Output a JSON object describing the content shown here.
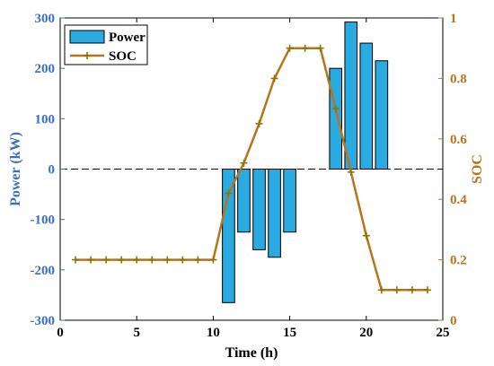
{
  "chart_data": {
    "type": "bar+line",
    "title": "",
    "xlabel": "Time (h)",
    "ylabel_left": "Power (kW)",
    "ylabel_right": "SOC",
    "xlim": [
      0,
      25
    ],
    "ylim_left": [
      -300,
      300
    ],
    "ylim_right": [
      0,
      1
    ],
    "x_ticks": [
      "0",
      "5",
      "10",
      "15",
      "20",
      "25"
    ],
    "y_left_ticks": [
      "-300",
      "-200",
      "-100",
      "0",
      "100",
      "200",
      "300"
    ],
    "y_right_ticks": [
      "0",
      "0.2",
      "0.4",
      "0.6",
      "0.8",
      "1"
    ],
    "grid": false,
    "legend_position": "top-left",
    "colors": {
      "power": "#29abe2",
      "soc": "#b8741a",
      "soc_marker": "#8b7500",
      "left_axis": "#3a6fc4",
      "right_axis": "#b8741a"
    },
    "series": [
      {
        "name": "Power",
        "axis": "left",
        "type": "bar",
        "x": [
          11,
          12,
          13,
          14,
          15,
          18,
          19,
          20,
          21
        ],
        "values": [
          -265,
          -125,
          -160,
          -175,
          -125,
          200,
          292,
          250,
          215
        ]
      },
      {
        "name": "SOC",
        "axis": "right",
        "type": "line",
        "x": [
          1,
          2,
          3,
          4,
          5,
          6,
          7,
          8,
          9,
          10,
          11,
          12,
          13,
          14,
          15,
          16,
          17,
          18,
          19,
          20,
          21,
          22,
          23,
          24
        ],
        "values": [
          0.2,
          0.2,
          0.2,
          0.2,
          0.2,
          0.2,
          0.2,
          0.2,
          0.2,
          0.2,
          0.42,
          0.52,
          0.65,
          0.8,
          0.9,
          0.9,
          0.9,
          0.7,
          0.49,
          0.28,
          0.1,
          0.1,
          0.1,
          0.1
        ]
      }
    ]
  }
}
